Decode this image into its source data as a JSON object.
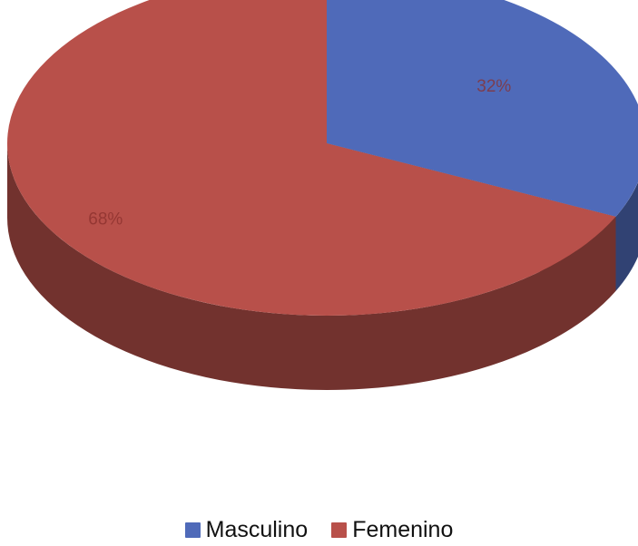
{
  "chart_data": {
    "type": "pie",
    "title": "",
    "series": [
      {
        "name": "",
        "categories": [
          "Masculino",
          "Femenino"
        ],
        "values": [
          32,
          68
        ],
        "data_labels": [
          "32%",
          "68%"
        ]
      }
    ],
    "legend_position": "bottom",
    "three_d": true,
    "colors": {
      "Masculino": "#4f6ab9",
      "Femenino": "#b8504a"
    }
  },
  "legend": {
    "items": [
      {
        "label": "Masculino",
        "color": "#4f6ab9"
      },
      {
        "label": "Femenino",
        "color": "#b8504a"
      }
    ]
  }
}
